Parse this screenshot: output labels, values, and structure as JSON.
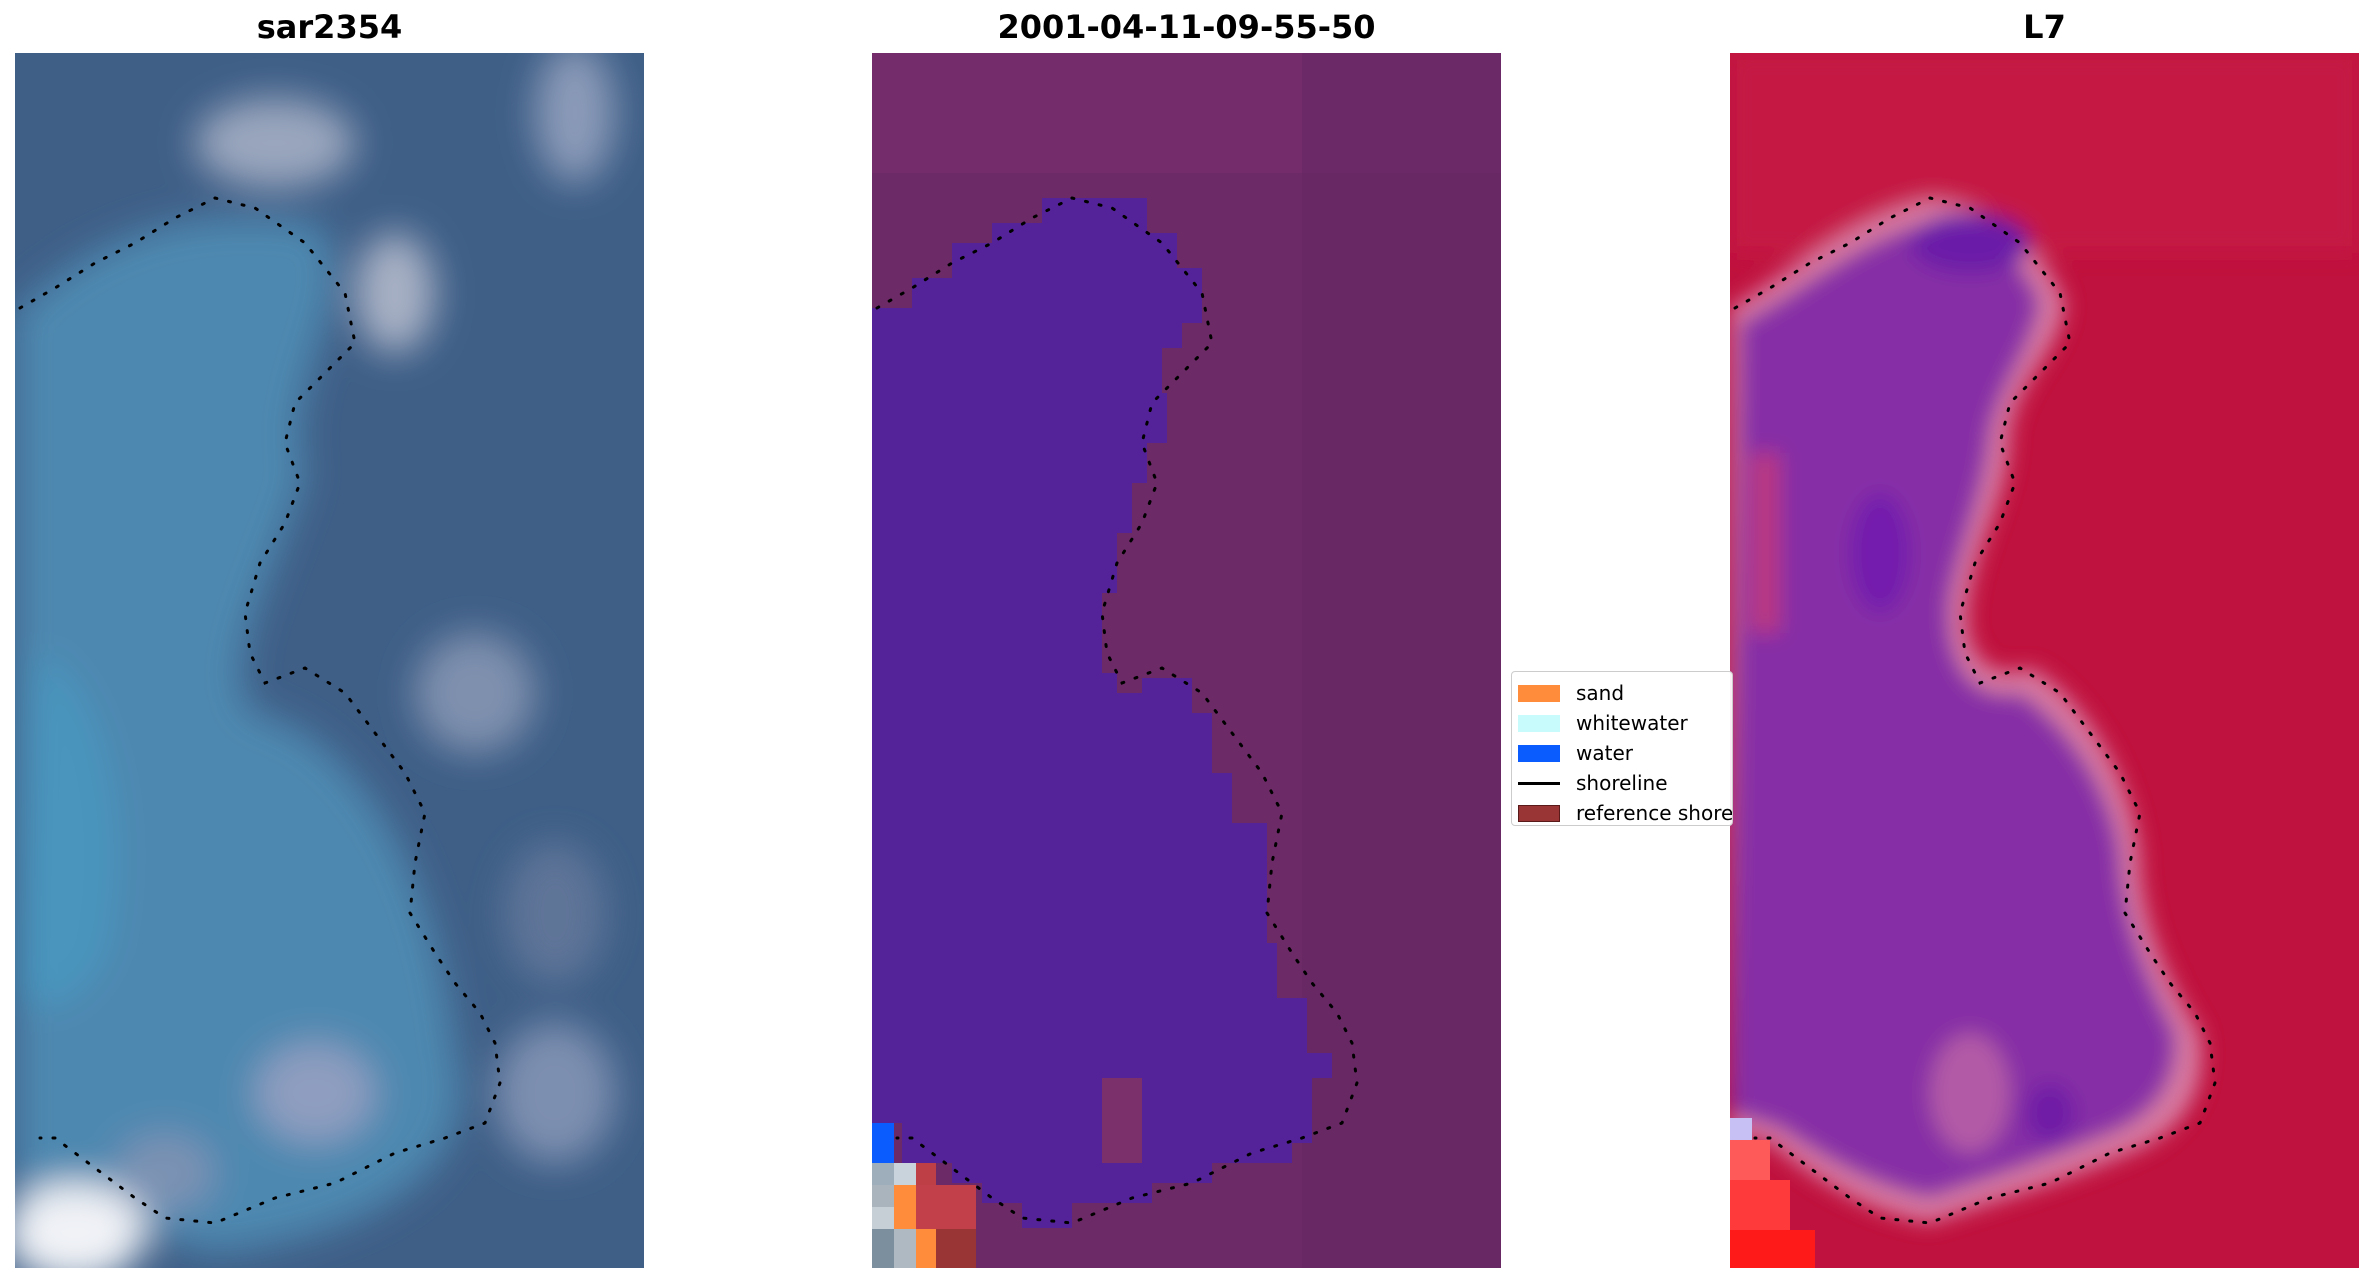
{
  "panels": [
    {
      "title": "sar2354",
      "kind": "rgb-image"
    },
    {
      "title": "2001-04-11-09-55-50",
      "kind": "classification-overlay"
    },
    {
      "title": "L7",
      "kind": "index-image"
    }
  ],
  "legend": {
    "items": [
      {
        "label": "sand",
        "type": "patch",
        "color": "#ff8c3a"
      },
      {
        "label": "whitewater",
        "type": "patch",
        "color": "#c8fbfb"
      },
      {
        "label": "water",
        "type": "patch",
        "color": "#0a5cff"
      },
      {
        "label": "shoreline",
        "type": "line",
        "color": "#000000"
      },
      {
        "label": "reference shoreline",
        "type": "patch",
        "color": "#9a3535"
      }
    ]
  },
  "colors": {
    "rgb_water": "#4a7aa0",
    "rgb_land": "#3d5e86",
    "class_land": "#6f2a68",
    "class_water_overlay": "#53239a",
    "index_land": "#c2103c",
    "index_water": "#7b2aa8"
  }
}
